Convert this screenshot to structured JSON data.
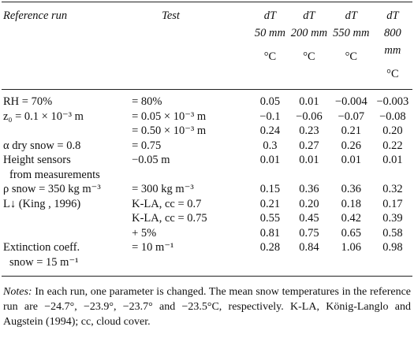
{
  "header": {
    "columns": [
      {
        "name": "Reference run"
      },
      {
        "name": "Test"
      },
      {
        "name": "dT",
        "depth": "50 mm",
        "unit": "°C"
      },
      {
        "name": "dT",
        "depth": "200 mm",
        "unit": "°C"
      },
      {
        "name": "dT",
        "depth": "550 mm",
        "unit": "°C"
      },
      {
        "name": "dT",
        "depth": "800 mm",
        "unit": "°C"
      }
    ]
  },
  "table": {
    "rows": [
      [
        "RH = 70%",
        "= 80%",
        "0.05",
        "0.01",
        "−0.004",
        "−0.003"
      ],
      [
        "z₀ = 0.1 × 10⁻³ m",
        "= 0.05 × 10⁻³ m",
        "−0.1",
        "−0.06",
        "−0.07",
        "−0.08"
      ],
      [
        null,
        "= 0.50 × 10⁻³ m",
        "0.24",
        "0.23",
        "0.21",
        "0.20"
      ],
      [
        "α dry snow = 0.8",
        "= 0.75",
        "0.3",
        "0.27",
        "0.26",
        "0.22"
      ],
      [
        [
          "Height sensors",
          "from measurements"
        ],
        "−0.05 m",
        "0.01",
        "0.01",
        "0.01",
        "0.01"
      ],
      [
        "ρ snow = 350 kg m⁻³",
        "= 300 kg m⁻³",
        "0.15",
        "0.36",
        "0.36",
        "0.32"
      ],
      [
        "L↓ (King , 1996)",
        "K-LA, cc = 0.7",
        "0.21",
        "0.20",
        "0.18",
        "0.17"
      ],
      [
        null,
        "K-LA, cc = 0.75",
        "0.55",
        "0.45",
        "0.42",
        "0.39"
      ],
      [
        null,
        "+ 5%",
        "0.81",
        "0.75",
        "0.65",
        "0.58"
      ],
      [
        [
          "Extinction coeff.",
          "snow = 15 m⁻¹"
        ],
        "= 10 m⁻¹",
        "0.28",
        "0.84",
        "1.06",
        "0.98"
      ]
    ]
  },
  "notes": {
    "label": "Notes:",
    "text": "In each run, one parameter is changed. The mean snow temperatures in the reference run are −24.7°, −23.9°, −23.7° and −23.5°C, respectively. K-LA, König-Langlo and Augstein (1994); cc, cloud cover."
  }
}
